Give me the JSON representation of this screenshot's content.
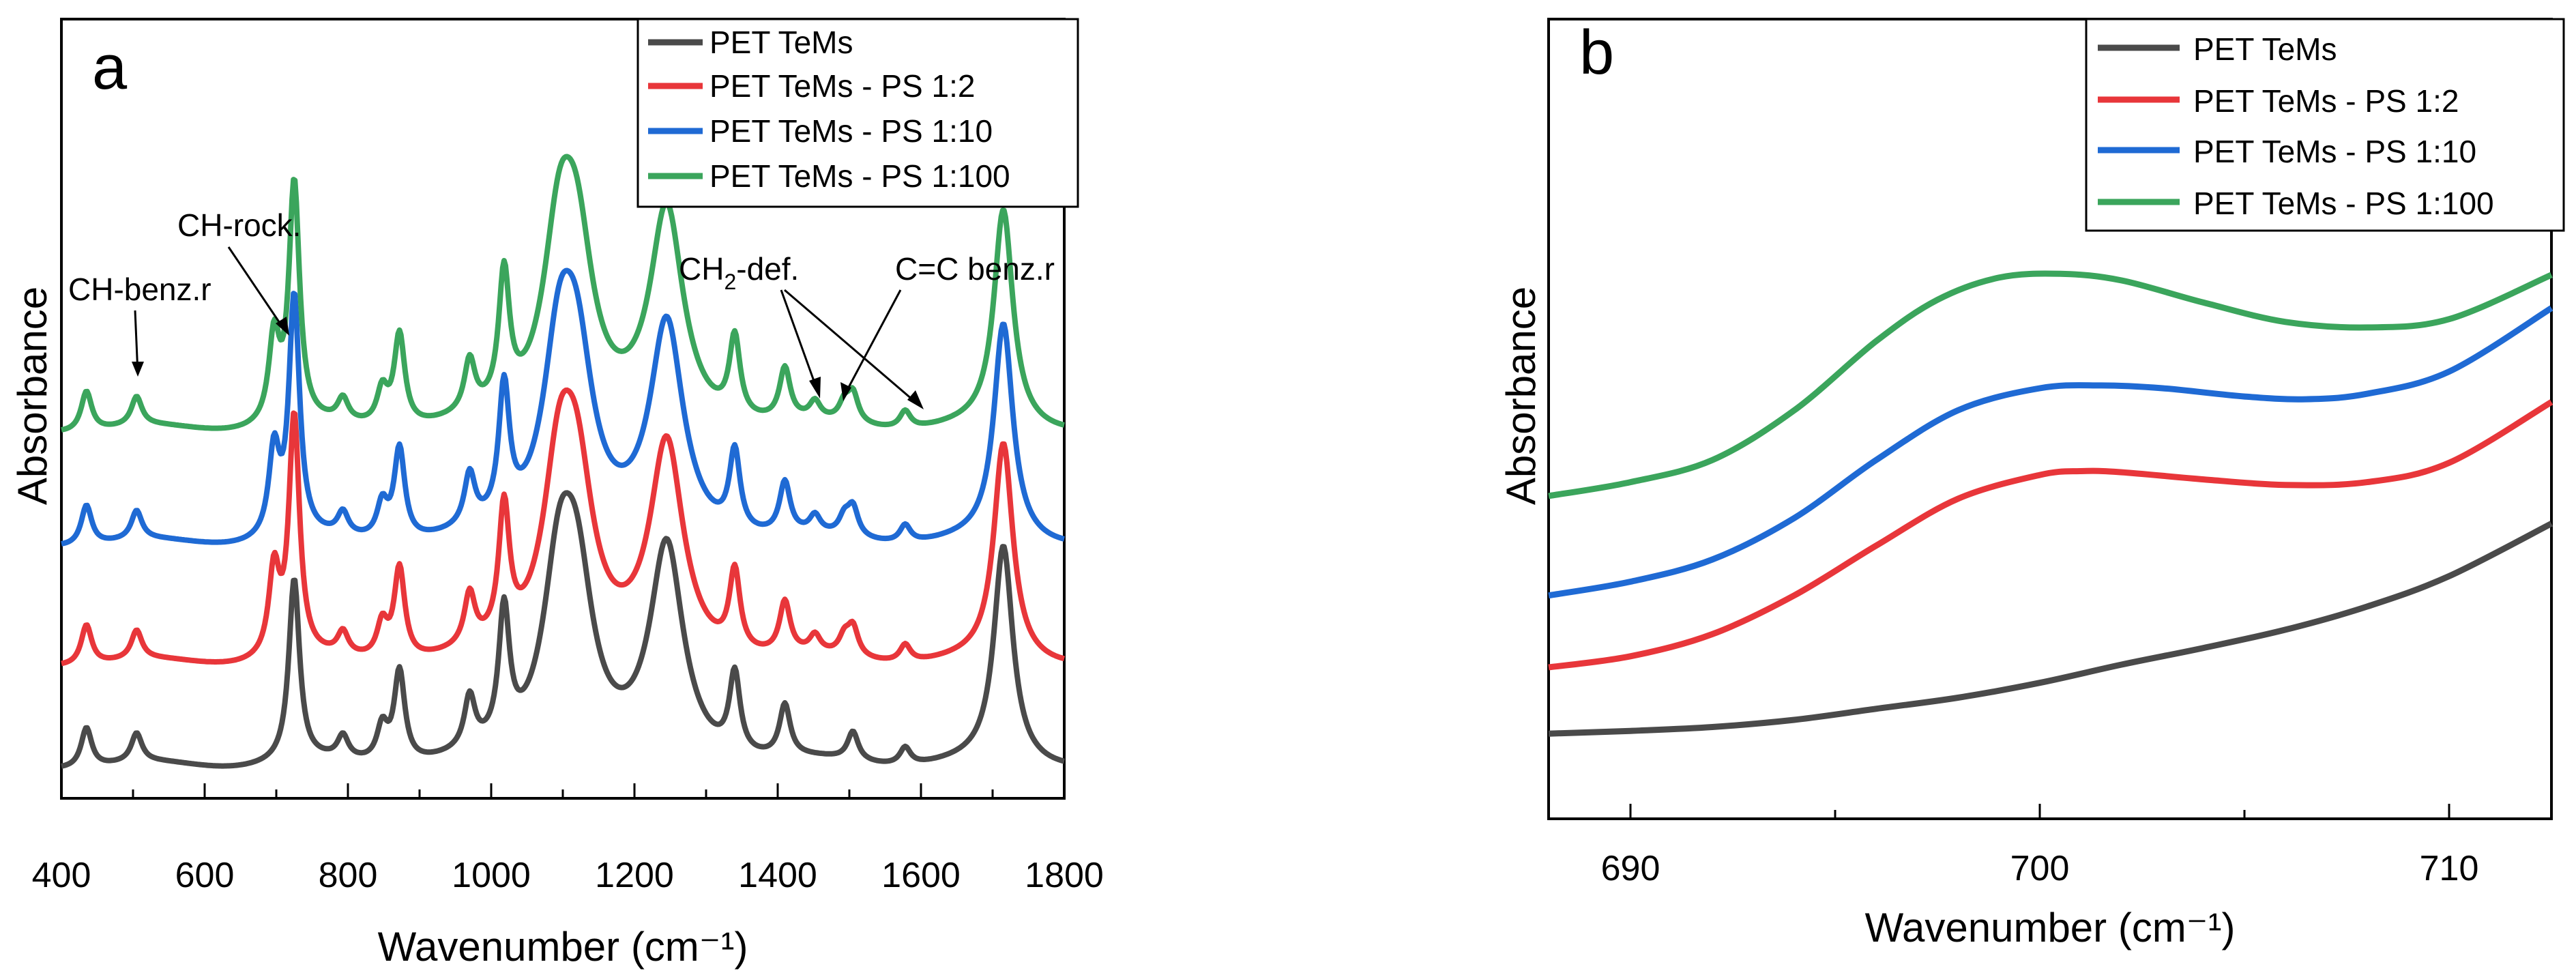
{
  "chart_data": [
    {
      "type": "line",
      "panel_label": "a",
      "xlabel": "Wavenumber (cm⁻¹)",
      "ylabel": "Absorbance",
      "xlim": [
        400,
        1800
      ],
      "xticks": [
        "400",
        "600",
        "800",
        "1000",
        "1200",
        "1400",
        "1600",
        "1800"
      ],
      "legend": {
        "placement": "top-right"
      },
      "series": [
        {
          "name": "PET TeMs",
          "color": "#4a4a4a",
          "baseline": 0.05,
          "peaks": [
            [
              435,
              0.07
            ],
            [
              505,
              0.05
            ],
            [
              725,
              0.32
            ],
            [
              793,
              0.04
            ],
            [
              848,
              0.06
            ],
            [
              872,
              0.16
            ],
            [
              970,
              0.09
            ],
            [
              1018,
              0.23
            ],
            [
              1095,
              0.3
            ],
            [
              1120,
              0.26
            ],
            [
              1245,
              0.37
            ],
            [
              1340,
              0.14
            ],
            [
              1410,
              0.09
            ],
            [
              1505,
              0.05
            ],
            [
              1578,
              0.03
            ],
            [
              1715,
              0.38
            ]
          ]
        },
        {
          "name": "PET TeMs - PS 1:2",
          "color": "#e8363a",
          "baseline": 0.23,
          "peaks": [
            [
              435,
              0.07
            ],
            [
              505,
              0.05
            ],
            [
              697,
              0.15
            ],
            [
              725,
              0.42
            ],
            [
              793,
              0.04
            ],
            [
              848,
              0.06
            ],
            [
              872,
              0.16
            ],
            [
              970,
              0.09
            ],
            [
              1018,
              0.23
            ],
            [
              1095,
              0.3
            ],
            [
              1120,
              0.26
            ],
            [
              1245,
              0.37
            ],
            [
              1340,
              0.14
            ],
            [
              1410,
              0.09
            ],
            [
              1452,
              0.03
            ],
            [
              1493,
              0.03
            ],
            [
              1505,
              0.05
            ],
            [
              1578,
              0.03
            ],
            [
              1715,
              0.38
            ]
          ]
        },
        {
          "name": "PET TeMs - PS 1:10",
          "color": "#1f6ad4",
          "baseline": 0.44,
          "peaks": [
            [
              435,
              0.07
            ],
            [
              505,
              0.05
            ],
            [
              697,
              0.15
            ],
            [
              725,
              0.42
            ],
            [
              793,
              0.04
            ],
            [
              848,
              0.06
            ],
            [
              872,
              0.16
            ],
            [
              970,
              0.09
            ],
            [
              1018,
              0.23
            ],
            [
              1095,
              0.3
            ],
            [
              1120,
              0.26
            ],
            [
              1245,
              0.37
            ],
            [
              1340,
              0.14
            ],
            [
              1410,
              0.09
            ],
            [
              1452,
              0.03
            ],
            [
              1493,
              0.03
            ],
            [
              1505,
              0.05
            ],
            [
              1578,
              0.03
            ],
            [
              1715,
              0.38
            ]
          ]
        },
        {
          "name": "PET TeMs - PS 1:100",
          "color": "#3ba55c",
          "baseline": 0.64,
          "peaks": [
            [
              435,
              0.07
            ],
            [
              505,
              0.05
            ],
            [
              697,
              0.15
            ],
            [
              725,
              0.42
            ],
            [
              793,
              0.04
            ],
            [
              848,
              0.06
            ],
            [
              872,
              0.16
            ],
            [
              970,
              0.09
            ],
            [
              1018,
              0.23
            ],
            [
              1095,
              0.3
            ],
            [
              1120,
              0.26
            ],
            [
              1245,
              0.37
            ],
            [
              1340,
              0.14
            ],
            [
              1410,
              0.09
            ],
            [
              1452,
              0.03
            ],
            [
              1493,
              0.03
            ],
            [
              1505,
              0.05
            ],
            [
              1578,
              0.03
            ],
            [
              1715,
              0.38
            ]
          ]
        }
      ],
      "annotations": [
        {
          "text": "CH-benz.r"
        },
        {
          "text": "CH-rock."
        },
        {
          "text_main": "CH",
          "text_sub": "2",
          "text_rest": "-def."
        },
        {
          "text": "C=C benz.r"
        }
      ]
    },
    {
      "type": "line",
      "panel_label": "b",
      "xlabel": "Wavenumber (cm⁻¹)",
      "ylabel": "Absorbance",
      "xlim": [
        688,
        712.5
      ],
      "xticks": [
        "690",
        "700",
        "710"
      ],
      "legend": {
        "placement": "top-right"
      },
      "series": [
        {
          "name": "PET TeMs",
          "color": "#4a4a4a",
          "x": [
            688,
            690,
            692,
            694,
            696,
            698,
            700,
            702,
            704,
            706,
            708,
            710,
            712.5
          ],
          "y": [
            0.08,
            0.085,
            0.092,
            0.105,
            0.125,
            0.145,
            0.172,
            0.205,
            0.235,
            0.268,
            0.31,
            0.365,
            0.46
          ]
        },
        {
          "name": "PET TeMs - PS 1:2",
          "color": "#e8363a",
          "x": [
            688,
            690,
            692,
            694,
            696,
            698,
            700,
            701,
            702,
            704,
            706,
            708,
            710,
            712.5
          ],
          "y": [
            0.2,
            0.22,
            0.26,
            0.33,
            0.42,
            0.505,
            0.548,
            0.555,
            0.553,
            0.54,
            0.53,
            0.535,
            0.57,
            0.68
          ]
        },
        {
          "name": "PET TeMs - PS 1:10",
          "color": "#1f6ad4",
          "x": [
            688,
            690,
            692,
            694,
            696,
            698,
            700,
            701.5,
            703,
            705,
            706.5,
            708,
            710,
            712.5
          ],
          "y": [
            0.33,
            0.355,
            0.395,
            0.47,
            0.575,
            0.665,
            0.705,
            0.71,
            0.705,
            0.69,
            0.685,
            0.695,
            0.735,
            0.85
          ]
        },
        {
          "name": "PET TeMs - PS 1:100",
          "color": "#3ba55c",
          "x": [
            688,
            690,
            692,
            694,
            696,
            697.5,
            699,
            700.5,
            702,
            704,
            706,
            708,
            710,
            712.5
          ],
          "y": [
            0.51,
            0.535,
            0.575,
            0.665,
            0.79,
            0.865,
            0.905,
            0.912,
            0.9,
            0.86,
            0.825,
            0.815,
            0.83,
            0.91
          ]
        }
      ]
    }
  ]
}
